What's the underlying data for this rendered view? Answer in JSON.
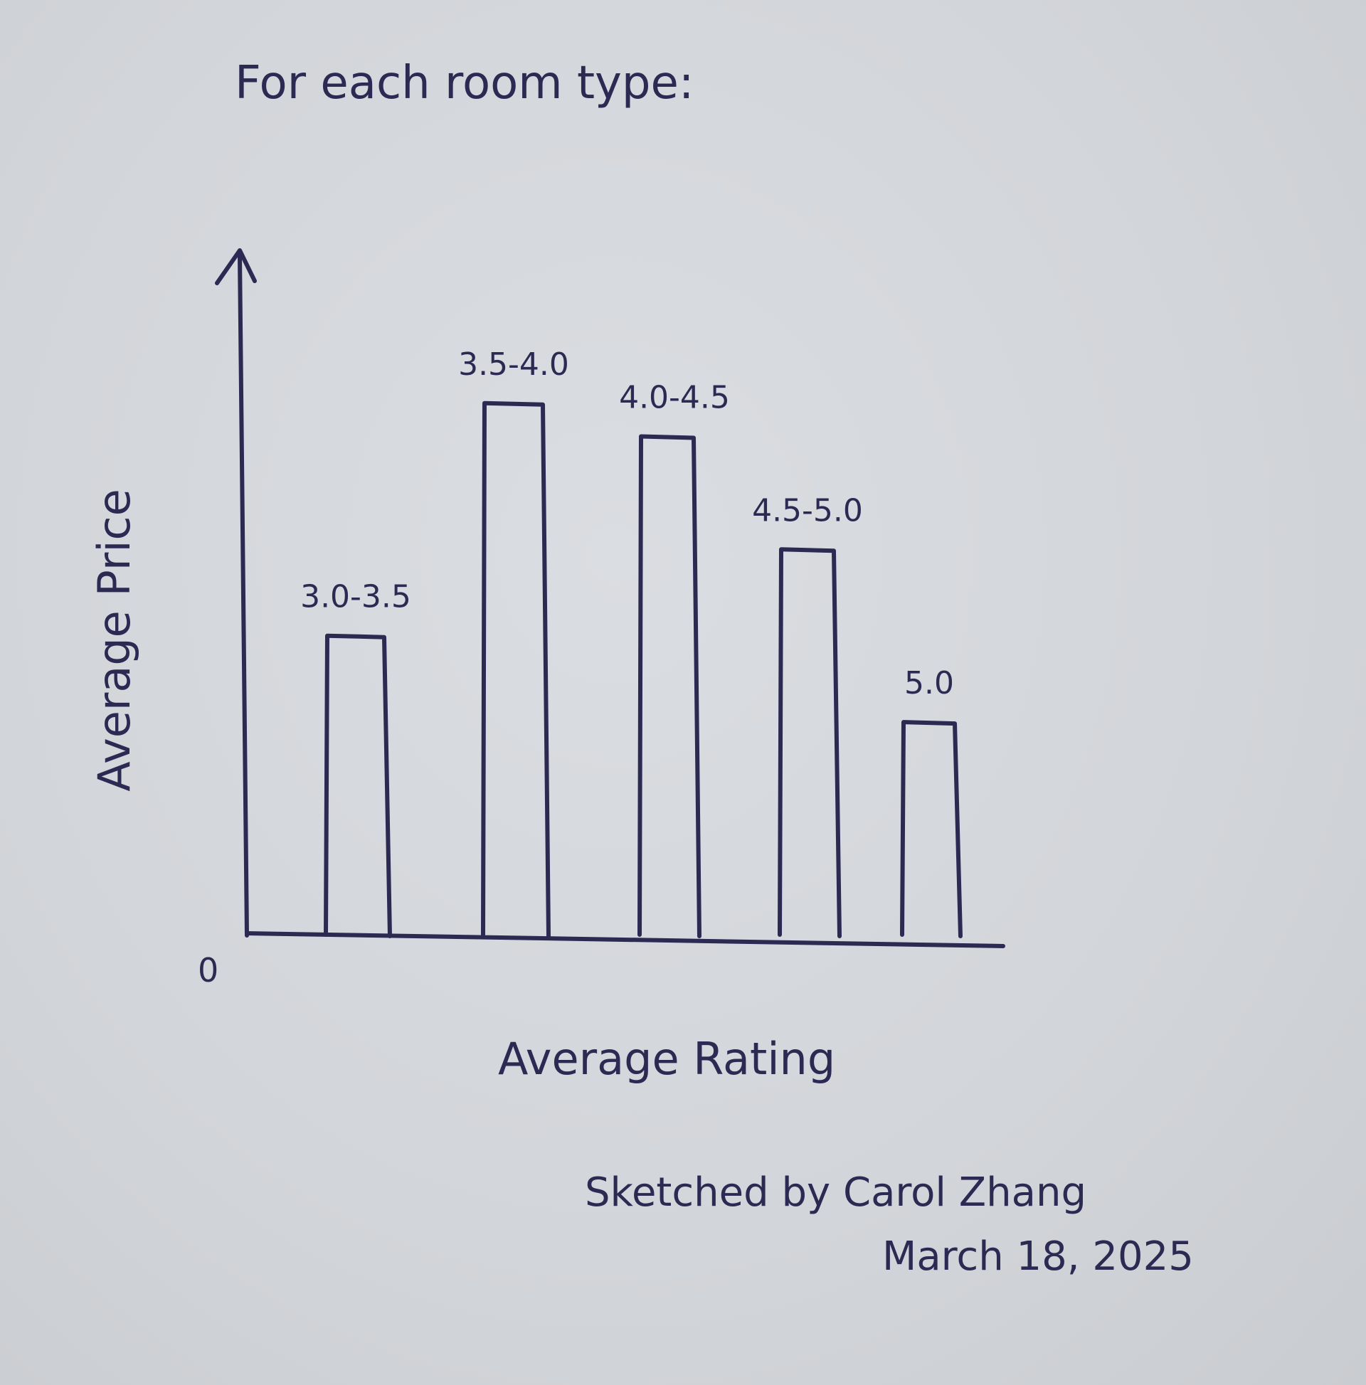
{
  "chart_data": {
    "type": "bar",
    "title": "For each room type:",
    "xlabel": "Average Rating",
    "ylabel": "Average Price",
    "y_origin_label": "0",
    "categories": [
      "3.0-3.5",
      "3.5-4.0",
      "4.0-4.5",
      "4.5-5.0",
      "5.0"
    ],
    "values": [
      45,
      80,
      75,
      58,
      32
    ],
    "ylim": [
      0,
      100
    ],
    "grid": false,
    "legend": "none"
  },
  "signature": {
    "line1": "Sketched by Carol Zhang",
    "line2": "March 18, 2025"
  },
  "colors": {
    "ink": "#2c2a52",
    "paper": "#d7dade"
  }
}
